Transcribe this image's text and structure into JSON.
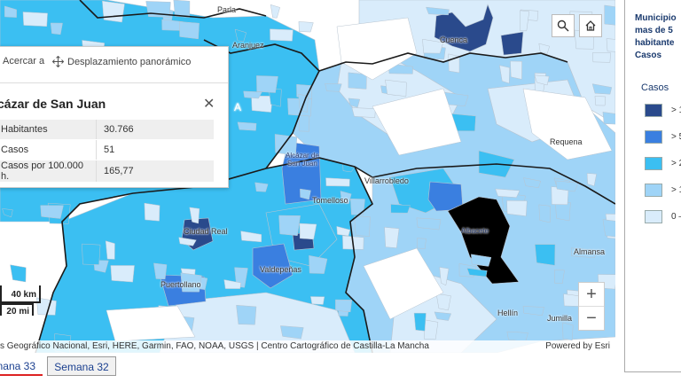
{
  "map": {
    "labels": {
      "parla": "Parla",
      "aranjuez": "Aranjuez",
      "cuenca": "Cuenca",
      "requena": "Requena",
      "alcazar": "Alcázar de\nSan Juan",
      "tomelloso": "Tomelloso",
      "villarrobledo": "Villarrobledo",
      "albacete": "Albacete",
      "ciudad_real": "Ciudad Real",
      "valdepenas": "Valdepeñas",
      "puertollano": "Puertollano",
      "almansa": "Almansa",
      "hellin": "Hellín",
      "jumilla": "Jumilla",
      "region_a": "A"
    },
    "colors": {
      "class1": "#d9ecfb",
      "class2": "#9fd4f7",
      "class3": "#3bbff2",
      "class4": "#3a7fe0",
      "class5": "#2a4a8c",
      "boundary": "#1a1a1a",
      "muni": "#b8c4d0"
    },
    "zoom": {
      "in_label": "+",
      "out_label": "−"
    },
    "top_buttons": {
      "search_icon": "search-icon",
      "home_icon": "home-icon"
    }
  },
  "scalebar": {
    "km": "40 km",
    "mi": "20 mi"
  },
  "attribution": {
    "left": "s Geográfico Nacional, Esri, HERE, Garmin, FAO, NOAA, USGS | Centro Cartográfico de Castilla-La Mancha",
    "right": "Powered by Esri"
  },
  "popup": {
    "zoom_to_label": "Acercar a",
    "pan_label": "Desplazamiento panorámico",
    "title": "cázar de San Juan",
    "rows": [
      {
        "label": "Habitantes",
        "value": "30.766"
      },
      {
        "label": "Casos",
        "value": "51"
      },
      {
        "label": "Casos por 100.000 h.",
        "value": "165,77"
      }
    ]
  },
  "tabs": [
    {
      "label": "mana 33",
      "active": true
    },
    {
      "label": "Semana 32",
      "active": false
    }
  ],
  "legend": {
    "title_lines": [
      "Municipio",
      "mas de 5",
      "habitante",
      "Casos"
    ],
    "subtitle": "Casos",
    "items": [
      {
        "label": "> 1",
        "color": "#2a4a8c"
      },
      {
        "label": "> 5",
        "color": "#3a7fe0"
      },
      {
        "label": "> 2",
        "color": "#3bbff2"
      },
      {
        "label": "> 1",
        "color": "#9fd4f7"
      },
      {
        "label": "0 –",
        "color": "#d9ecfb"
      }
    ]
  }
}
